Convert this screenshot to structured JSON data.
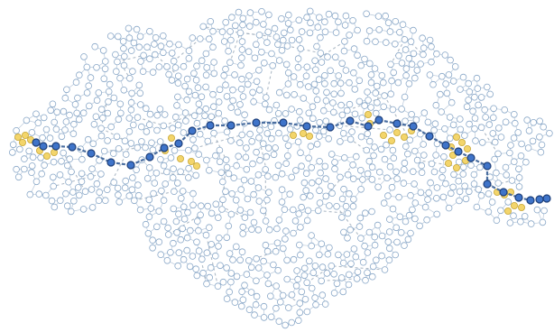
{
  "diagram": {
    "type": "network-graph",
    "description_visible_text": "",
    "colors": {
      "background": "#ffffff",
      "node_fill": "#ffffff",
      "node_stroke": "#8aa8c8",
      "edge_default": "#b8c8da",
      "dashed_edge": "#9aa9b8",
      "path_node_fill": "#3f74c9",
      "path_node_stroke": "#1d3f7a",
      "path_edge": "#4a6ea0",
      "neighbor_node_fill": "#f3d56b",
      "neighbor_node_stroke": "#c8a83a"
    },
    "legend": [],
    "highlighted_path": {
      "label": "",
      "node_count": 26
    },
    "neighbor_clusters": [
      {
        "id": "far-left"
      },
      {
        "id": "left-mid"
      },
      {
        "id": "center"
      },
      {
        "id": "center-right"
      },
      {
        "id": "right"
      },
      {
        "id": "far-right"
      }
    ]
  }
}
